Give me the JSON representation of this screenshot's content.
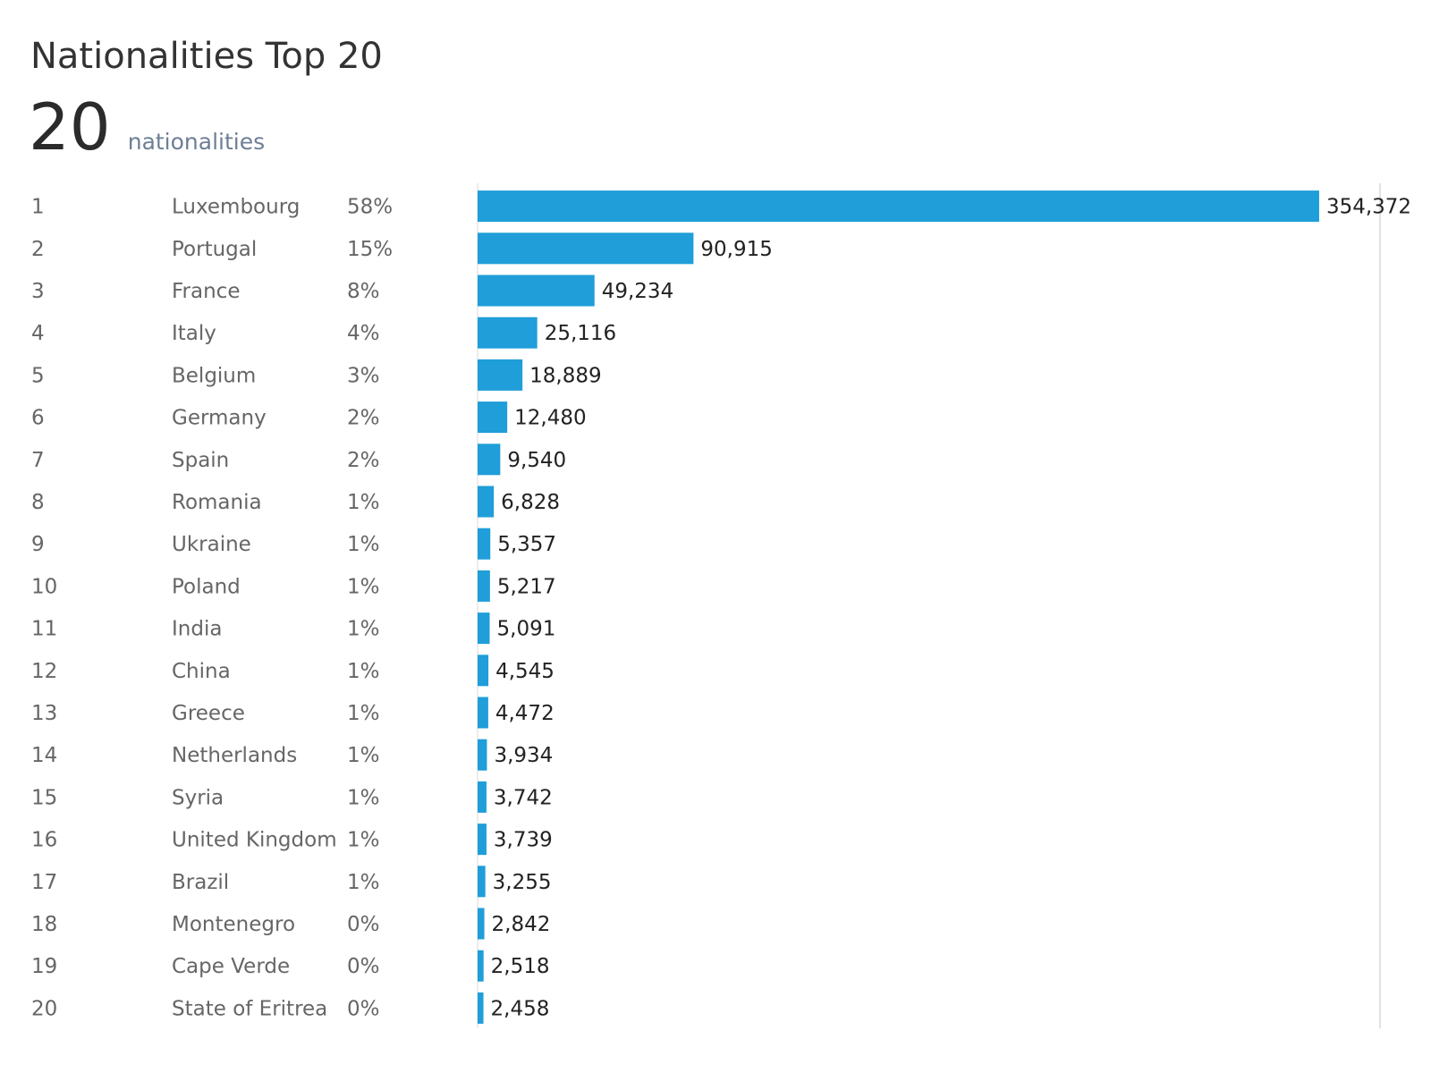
{
  "header": {
    "title": "Nationalities Top 20",
    "kpi_value": "20",
    "kpi_label": "nationalities"
  },
  "colors": {
    "bar": "#1f9ed9",
    "axis": "#d9d9d9"
  },
  "chart_data": {
    "type": "bar",
    "orientation": "horizontal",
    "xlim": [
      0,
      380000
    ],
    "grid": false,
    "rows": [
      {
        "rank": "1",
        "country": "Luxembourg",
        "share": "58%",
        "value": 354372,
        "label": "354,372"
      },
      {
        "rank": "2",
        "country": "Portugal",
        "share": "15%",
        "value": 90915,
        "label": "90,915"
      },
      {
        "rank": "3",
        "country": "France",
        "share": "8%",
        "value": 49234,
        "label": "49,234"
      },
      {
        "rank": "4",
        "country": "Italy",
        "share": "4%",
        "value": 25116,
        "label": "25,116"
      },
      {
        "rank": "5",
        "country": "Belgium",
        "share": "3%",
        "value": 18889,
        "label": "18,889"
      },
      {
        "rank": "6",
        "country": "Germany",
        "share": "2%",
        "value": 12480,
        "label": "12,480"
      },
      {
        "rank": "7",
        "country": "Spain",
        "share": "2%",
        "value": 9540,
        "label": "9,540"
      },
      {
        "rank": "8",
        "country": "Romania",
        "share": "1%",
        "value": 6828,
        "label": "6,828"
      },
      {
        "rank": "9",
        "country": "Ukraine",
        "share": "1%",
        "value": 5357,
        "label": "5,357"
      },
      {
        "rank": "10",
        "country": "Poland",
        "share": "1%",
        "value": 5217,
        "label": "5,217"
      },
      {
        "rank": "11",
        "country": "India",
        "share": "1%",
        "value": 5091,
        "label": "5,091"
      },
      {
        "rank": "12",
        "country": "China",
        "share": "1%",
        "value": 4545,
        "label": "4,545"
      },
      {
        "rank": "13",
        "country": "Greece",
        "share": "1%",
        "value": 4472,
        "label": "4,472"
      },
      {
        "rank": "14",
        "country": "Netherlands",
        "share": "1%",
        "value": 3934,
        "label": "3,934"
      },
      {
        "rank": "15",
        "country": "Syria",
        "share": "1%",
        "value": 3742,
        "label": "3,742"
      },
      {
        "rank": "16",
        "country": "United Kingdom",
        "share": "1%",
        "value": 3739,
        "label": "3,739"
      },
      {
        "rank": "17",
        "country": "Brazil",
        "share": "1%",
        "value": 3255,
        "label": "3,255"
      },
      {
        "rank": "18",
        "country": "Montenegro",
        "share": "0%",
        "value": 2842,
        "label": "2,842"
      },
      {
        "rank": "19",
        "country": "Cape Verde",
        "share": "0%",
        "value": 2518,
        "label": "2,518"
      },
      {
        "rank": "20",
        "country": "State of Eritrea",
        "share": "0%",
        "value": 2458,
        "label": "2,458"
      }
    ]
  }
}
